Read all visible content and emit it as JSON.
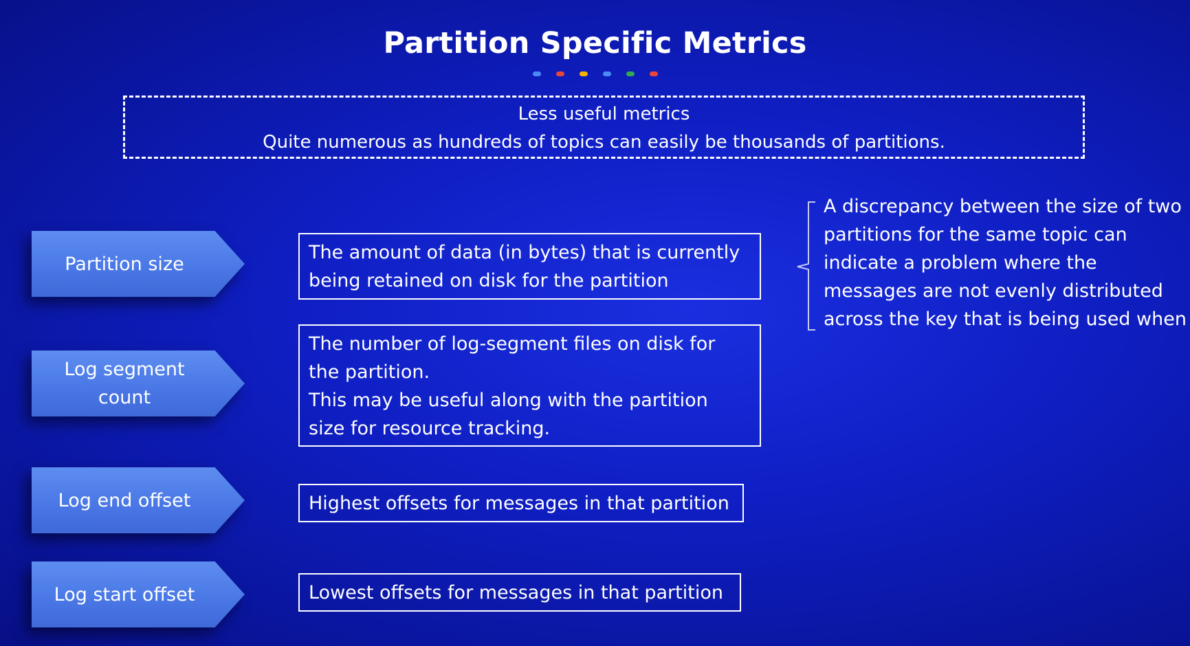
{
  "title": "Partition Specific Metrics",
  "dot_colors": [
    "#4a8af4",
    "#e8453c",
    "#f4b400",
    "#4a8af4",
    "#34a853",
    "#e8453c"
  ],
  "note": {
    "line1": "Less useful metrics",
    "line2": "Quite numerous as hundreds of topics can easily be thousands of partitions."
  },
  "metrics": [
    {
      "label_lines": [
        "Partition size"
      ],
      "desc_lines": [
        "The amount of data (in bytes) that is currently",
        "being retained on disk for the partition"
      ]
    },
    {
      "label_lines": [
        "Log segment",
        "count"
      ],
      "desc_lines": [
        "The number of log-segment files on disk for",
        "the partition.",
        "This may be useful along with the partition",
        "size for resource tracking."
      ]
    },
    {
      "label_lines": [
        "Log end offset"
      ],
      "desc_lines": [
        "Highest offsets for messages in that partition"
      ]
    },
    {
      "label_lines": [
        "Log start offset"
      ],
      "desc_lines": [
        "Lowest offsets for messages in that partition"
      ]
    }
  ],
  "side_note_lines": [
    "A discrepancy between the size of two",
    "partitions for the same topic can",
    "indicate a problem where the",
    "messages are not evenly distributed",
    "across the key that is being used when"
  ],
  "colors": {
    "arrow_fill": "#4a78e6",
    "background": "#0f1fc4"
  }
}
